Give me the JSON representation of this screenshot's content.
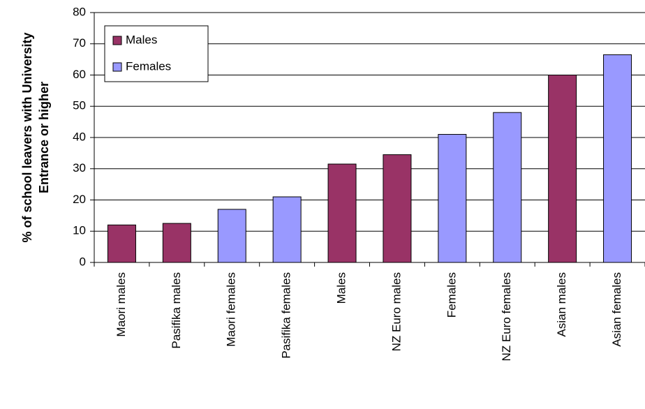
{
  "chart_data": {
    "type": "bar",
    "y_label": [
      "% of school leavers with University",
      "Entrance or higher"
    ],
    "categories": [
      "Maori males",
      "Pasifika males",
      "Maori females",
      "Pasifika females",
      "Males",
      "NZ Euro males",
      "Females",
      "NZ Euro females",
      "Asian males",
      "Asian females"
    ],
    "series": [
      {
        "name": "Males",
        "color": "#993366",
        "values": [
          12,
          12.5,
          null,
          null,
          31.5,
          34.5,
          null,
          null,
          60,
          null
        ]
      },
      {
        "name": "Females",
        "color": "#9999ff",
        "values": [
          null,
          null,
          17,
          21,
          null,
          null,
          41,
          48,
          null,
          66.5
        ]
      }
    ],
    "ylim": [
      0,
      80
    ],
    "yticks": [
      0,
      10,
      20,
      30,
      40,
      50,
      60,
      70,
      80
    ],
    "grid": true,
    "legend": "top-left"
  }
}
